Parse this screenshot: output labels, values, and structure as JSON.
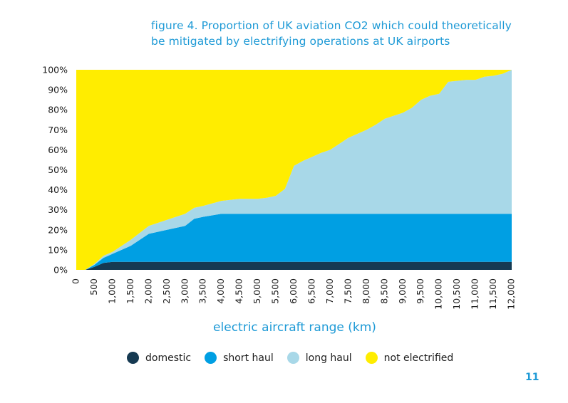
{
  "title": {
    "line1": "figure 4. Proportion of UK aviation CO2 which could theoretically",
    "line2": "be mitigated by electrifying operations at UK airports"
  },
  "page_number": "11",
  "chart_data": {
    "type": "area",
    "stacked": true,
    "xlabel": "electric aircraft range (km)",
    "ylabel": "",
    "xlim": [
      0,
      12000
    ],
    "ylim": [
      0,
      100
    ],
    "x_ticks": [
      "0",
      "500",
      "1,000",
      "1,500",
      "2,000",
      "2,500",
      "3,000",
      "3,500",
      "4,000",
      "4,500",
      "5,000",
      "5,500",
      "6,000",
      "6,500",
      "7,000",
      "7,500",
      "8,000",
      "8,500",
      "9,000",
      "9,500",
      "10,000",
      "10,500",
      "11,000",
      "11,500",
      "12,000"
    ],
    "y_ticks": [
      "0%",
      "10%",
      "20%",
      "30%",
      "40%",
      "50%",
      "60%",
      "70%",
      "80%",
      "90%",
      "100%"
    ],
    "x": [
      0,
      250,
      500,
      750,
      1000,
      1500,
      2000,
      2500,
      3000,
      3250,
      3500,
      4000,
      4500,
      5000,
      5250,
      5500,
      5750,
      6000,
      6250,
      6500,
      6750,
      7000,
      7250,
      7500,
      8000,
      8250,
      8500,
      9000,
      9250,
      9500,
      9750,
      10000,
      10250,
      10500,
      10750,
      11000,
      11250,
      11500,
      11750,
      12000
    ],
    "series": [
      {
        "name": "domestic",
        "color": "#163a52",
        "values": [
          0,
          0,
          1.5,
          3.5,
          4,
          4,
          4,
          4,
          4,
          4,
          4,
          4,
          4,
          4,
          4,
          4,
          4,
          4,
          4,
          4,
          4,
          4,
          4,
          4,
          4,
          4,
          4,
          4,
          4,
          4,
          4,
          4,
          4,
          4,
          4,
          4,
          4,
          4,
          4,
          4
        ]
      },
      {
        "name": "short haul",
        "color": "#009fe3",
        "values": [
          0,
          0,
          1,
          2.5,
          4,
          8,
          14,
          16,
          18,
          21.5,
          22.5,
          24,
          24,
          24,
          24,
          24,
          24,
          24,
          24,
          24,
          24,
          24,
          24,
          24,
          24,
          24,
          24,
          24,
          24,
          24,
          24,
          24,
          24,
          24,
          24,
          24,
          24,
          24,
          24,
          24
        ]
      },
      {
        "name": "long haul",
        "color": "#a8d8e8",
        "values": [
          0,
          0,
          0.5,
          1,
          1,
          3,
          4,
          5,
          6,
          5.5,
          5.5,
          6.5,
          7.5,
          7.5,
          8,
          9,
          12.5,
          24,
          26.5,
          28.5,
          30.5,
          32,
          35,
          38,
          42,
          44.5,
          47.5,
          50.5,
          53,
          57,
          59,
          60,
          66,
          66.5,
          67,
          67,
          68.5,
          69,
          70,
          72
        ]
      },
      {
        "name": "not electrified",
        "color": "#ffed00",
        "values": [
          100,
          100,
          97,
          93,
          91,
          85,
          78,
          75,
          72,
          69,
          68,
          65.5,
          64.5,
          64.5,
          64,
          63,
          59.5,
          48,
          45.5,
          43.5,
          41.5,
          40,
          37,
          34,
          30,
          27.5,
          24.5,
          21.5,
          19,
          15,
          13,
          12,
          6,
          5.5,
          5,
          5,
          3.5,
          3,
          2,
          0
        ]
      }
    ],
    "legend_position": "bottom",
    "grid": false
  }
}
